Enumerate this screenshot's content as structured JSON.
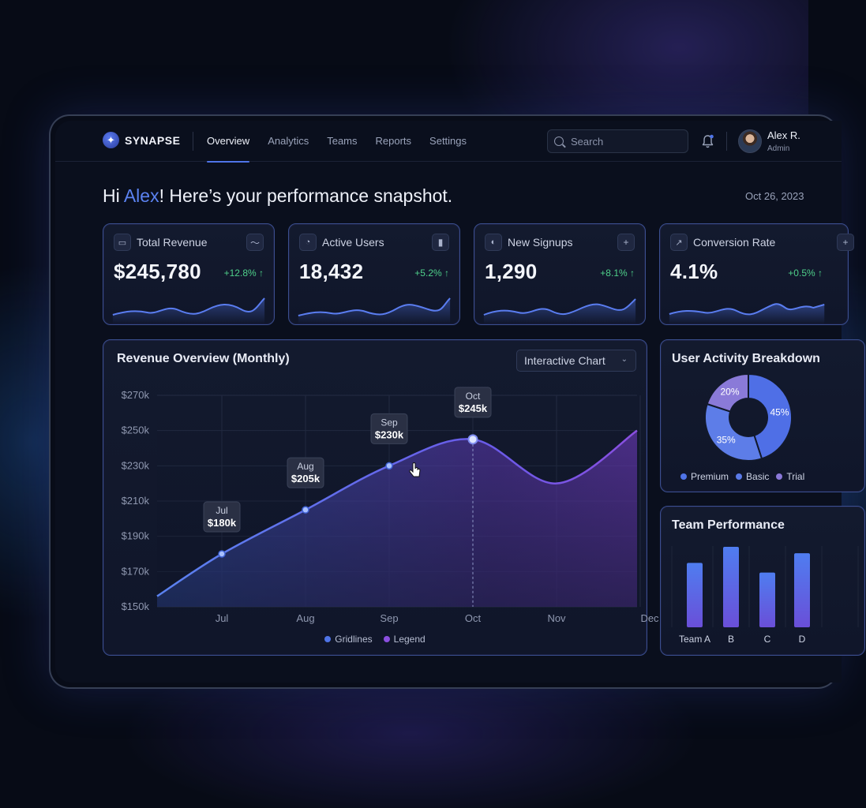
{
  "brand": {
    "name": "SYNAPSE",
    "icon": "star-logo-icon"
  },
  "nav": {
    "items": [
      {
        "label": "Overview",
        "active": true
      },
      {
        "label": "Analytics",
        "active": false
      },
      {
        "label": "Teams",
        "active": false
      },
      {
        "label": "Reports",
        "active": false
      },
      {
        "label": "Settings",
        "active": false
      }
    ]
  },
  "search": {
    "placeholder": "Search",
    "icon": "search-icon"
  },
  "notifications": {
    "icon": "bell-icon",
    "has_unread": true
  },
  "user": {
    "name": "Alex R.",
    "role": "Admin"
  },
  "greeting": {
    "prefix": "Hi ",
    "name": "Alex",
    "suffix": "! Here’s your performance snapshot."
  },
  "date": "Oct 26, 2023",
  "kpis": [
    {
      "title": "Total Revenue",
      "value": "$245,780",
      "delta": "+12.8% ↑",
      "icon": "wallet-icon",
      "action_icon": "trend-line-icon"
    },
    {
      "title": "Active Users",
      "value": "18,432",
      "delta": "+5.2% ↑",
      "icon": "users-icon",
      "action_icon": "bar-chart-icon"
    },
    {
      "title": "New Signups",
      "value": "1,290",
      "delta": "+8.1% ↑",
      "icon": "user-plus-icon",
      "action_icon": "plus-icon"
    },
    {
      "title": "Conversion Rate",
      "value": "4.1%",
      "delta": "+0.5% ↑",
      "icon": "external-link-icon",
      "action_icon": "plus-icon"
    }
  ],
  "revenue": {
    "title": "Revenue Overview (Monthly)",
    "dropdown": "Interactive Chart",
    "legend": [
      {
        "label": "Gridlines",
        "color": "#4f74e8"
      },
      {
        "label": "Legend",
        "color": "#8a4fe0"
      }
    ]
  },
  "activity": {
    "title": "User Activity Breakdown",
    "legend": [
      {
        "label": "Premium",
        "color": "#4f74e8"
      },
      {
        "label": "Basic",
        "color": "#5a7ae8"
      },
      {
        "label": "Trial",
        "color": "#8a78d8"
      }
    ]
  },
  "team": {
    "title": "Team Performance"
  },
  "colors": {
    "accent": "#4f74e8",
    "purple": "#8a4fe0",
    "positive": "#4fd08a"
  },
  "chart_data": [
    {
      "type": "area",
      "title": "Revenue Overview (Monthly)",
      "x": [
        "Jul",
        "Aug",
        "Sep",
        "Oct",
        "Nov",
        "Dec"
      ],
      "y_ticks": [
        "$270k",
        "$250k",
        "$230k",
        "$210k",
        "$190k",
        "$170k",
        "$150k"
      ],
      "ylim": [
        150,
        270
      ],
      "series": [
        {
          "values": [
            180,
            205,
            230,
            245,
            220,
            250
          ]
        }
      ],
      "annotations": [
        {
          "x": "Jul",
          "month": "Jul",
          "label": "$180k"
        },
        {
          "x": "Aug",
          "month": "Aug",
          "label": "$205k"
        },
        {
          "x": "Sep",
          "month": "Sep",
          "label": "$230k"
        },
        {
          "x": "Oct",
          "month": "Oct",
          "label": "$245k"
        }
      ],
      "grid": true
    },
    {
      "type": "pie",
      "title": "User Activity Breakdown",
      "categories": [
        "Premium",
        "Basic",
        "Trial"
      ],
      "values": [
        45,
        35,
        20
      ],
      "labels": [
        "45%",
        "35%",
        "20%"
      ],
      "donut": true
    },
    {
      "type": "bar",
      "title": "Team Performance",
      "categories": [
        "Team A",
        "B",
        "C",
        "D"
      ],
      "values": [
        80,
        100,
        68,
        92
      ]
    }
  ]
}
